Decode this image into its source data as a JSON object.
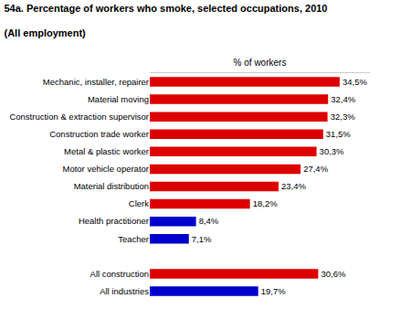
{
  "chart_data": {
    "type": "bar",
    "orientation": "horizontal",
    "title": "54a. Percentage of workers who smoke, selected occupations, 2010",
    "subtitle": "(All employment)",
    "x_label": "% of workers",
    "categories": [
      "Mechanic, installer, repairer",
      "Material moving",
      "Construction & extraction supervisor",
      "Construction trade worker",
      "Metal & plastic worker",
      "Motor vehicle operator",
      "Material distribution",
      "Clerk",
      "Health practitioner",
      "Teacher",
      null,
      "All construction",
      "All industries"
    ],
    "values": [
      34.5,
      32.4,
      32.3,
      31.5,
      30.3,
      27.4,
      23.4,
      18.2,
      8.4,
      7.1,
      0,
      30.6,
      19.7
    ],
    "value_labels": [
      "34,5%",
      "32,4%",
      "32,3%",
      "31,5%",
      "30,3%",
      "27,4%",
      "23,4%",
      "18,2%",
      "8,4%",
      "7,1%",
      null,
      "30,6%",
      "19,7%"
    ],
    "colors": [
      "#dd0000",
      "#dd0000",
      "#dd0000",
      "#dd0000",
      "#dd0000",
      "#dd0000",
      "#dd0000",
      "#dd0000",
      "#0000cc",
      "#0000cc",
      "#ffffff",
      "#dd0000",
      "#0000cc"
    ],
    "xlim": [
      0,
      40
    ],
    "data_labels": true,
    "tick_labels": "y",
    "grid": false
  }
}
